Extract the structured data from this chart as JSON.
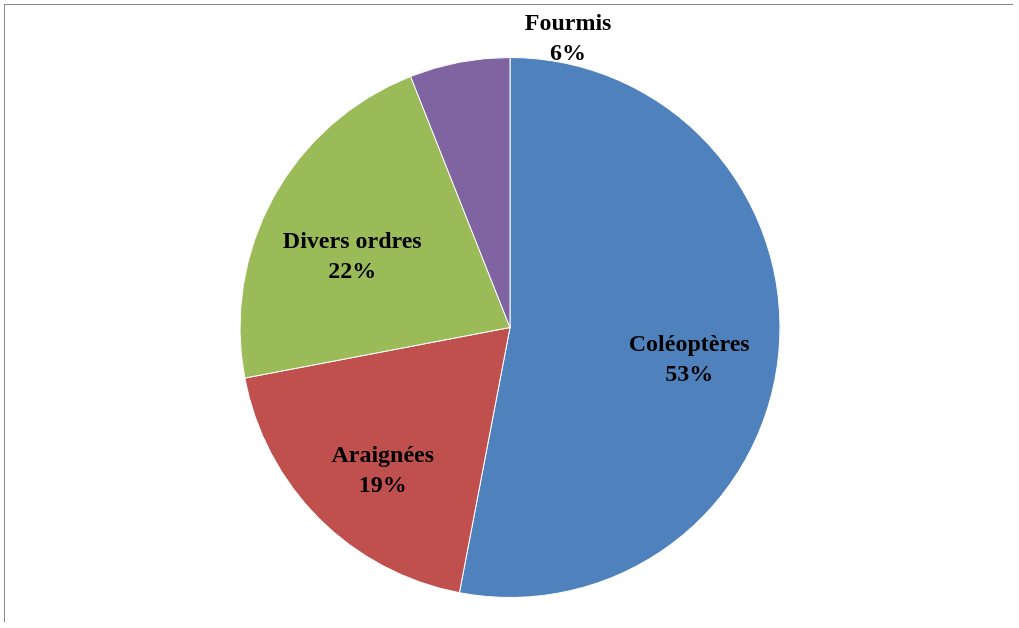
{
  "chart_data": {
    "type": "pie",
    "categories": [
      "Coléoptères",
      "Araignées",
      "Divers ordres",
      "Fourmis"
    ],
    "values": [
      53,
      19,
      22,
      6
    ],
    "value_labels": [
      "53%",
      "19%",
      "22%",
      "6%"
    ],
    "colors": [
      "#4f81bd",
      "#c0504d",
      "#9bbb59",
      "#8064a2"
    ],
    "legend": false
  }
}
